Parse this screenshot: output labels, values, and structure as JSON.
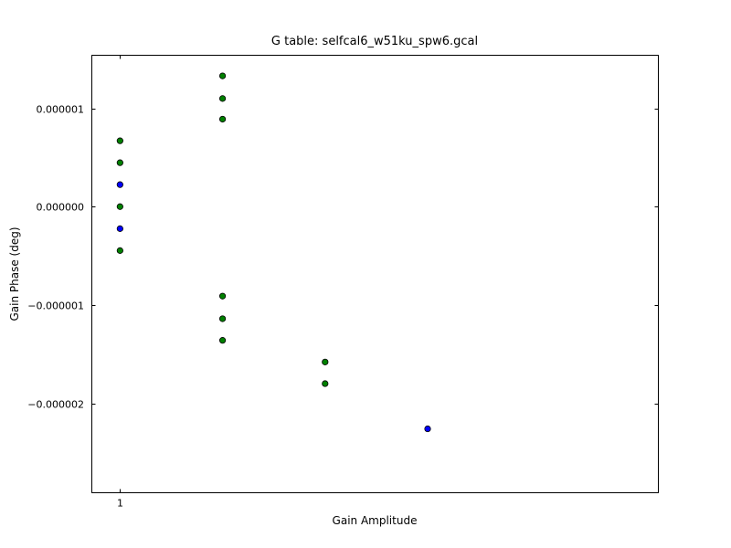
{
  "chart_data": {
    "type": "scatter",
    "title": "G table: selfcal6_w51ku_spw6.gcal",
    "xlabel": "Gain Amplitude",
    "ylabel": "Gain Phase (deg)",
    "x_ticks": [
      {
        "value": 1,
        "label": "1"
      }
    ],
    "y_ticks": [
      {
        "value": 1e-06,
        "label": "0.000001"
      },
      {
        "value": 0.0,
        "label": "0.000000"
      },
      {
        "value": -1e-06,
        "label": "−0.000001"
      },
      {
        "value": -2e-06,
        "label": "−0.000002"
      }
    ],
    "xlim": [
      0.99999989,
      1.0000021
    ],
    "ylim": [
      -2.91e-06,
      1.54e-06
    ],
    "colors": {
      "series_blue": "#0000ff",
      "series_green": "#008000",
      "edge": "#000000"
    },
    "series": [
      {
        "name": "blue",
        "color": "#0000ff",
        "points": [
          {
            "x": 1.0,
            "y": 2.24e-07
          },
          {
            "x": 1.0,
            "y": -2.24e-07
          },
          {
            "x": 1.0000012,
            "y": -2.26e-06
          }
        ]
      },
      {
        "name": "green",
        "color": "#008000",
        "points": [
          {
            "x": 1.0,
            "y": 6.7e-07
          },
          {
            "x": 1.0,
            "y": 4.47e-07
          },
          {
            "x": 1.0,
            "y": 0.0
          },
          {
            "x": 1.0,
            "y": -4.47e-07
          },
          {
            "x": 1.0000004,
            "y": 1.33e-06
          },
          {
            "x": 1.0000004,
            "y": 1.1e-06
          },
          {
            "x": 1.0000004,
            "y": 8.9e-07
          },
          {
            "x": 1.0000004,
            "y": -9.1e-07
          },
          {
            "x": 1.0000004,
            "y": -1.14e-06
          },
          {
            "x": 1.0000004,
            "y": -1.36e-06
          },
          {
            "x": 1.0000008,
            "y": -1.58e-06
          },
          {
            "x": 1.0000008,
            "y": -1.8e-06
          }
        ]
      }
    ]
  }
}
